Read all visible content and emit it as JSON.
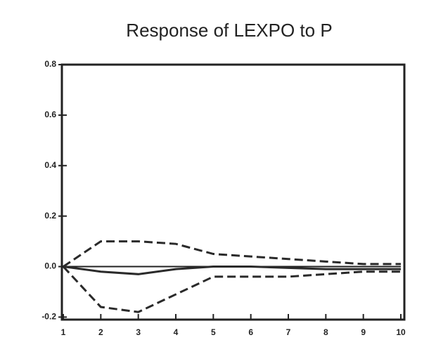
{
  "chart_data": {
    "type": "line",
    "title": "Response of LEXPO to P",
    "x": [
      1,
      2,
      3,
      4,
      5,
      6,
      7,
      8,
      9,
      10
    ],
    "xlim": [
      1,
      10
    ],
    "xticks": [
      1,
      2,
      3,
      4,
      5,
      6,
      7,
      8,
      9,
      10
    ],
    "ylim": [
      -0.21,
      0.8
    ],
    "yticks": [
      {
        "value": -0.2,
        "label": "-0.2"
      },
      {
        "value": 0,
        "label": "0.0"
      },
      {
        "value": 0.2,
        "label": "0.2"
      },
      {
        "value": 0.4,
        "label": "0.4"
      },
      {
        "value": 0.6,
        "label": "0.6"
      },
      {
        "value": 0.8,
        "label": "0.8"
      }
    ],
    "grid": false,
    "series": [
      {
        "color": "#2a2a2a",
        "dashed": false,
        "values": [
          0,
          -0.02,
          -0.03,
          -0.01,
          0.0,
          0.0,
          -0.005,
          -0.01,
          -0.01,
          -0.01
        ]
      },
      {
        "color": "#2a2a2a",
        "dashed": true,
        "values": [
          0,
          0.1,
          0.1,
          0.09,
          0.05,
          0.04,
          0.03,
          0.02,
          0.01,
          0.01
        ]
      },
      {
        "color": "#2a2a2a",
        "dashed": true,
        "values": [
          0,
          -0.16,
          -0.18,
          -0.11,
          -0.04,
          -0.04,
          -0.04,
          -0.03,
          -0.02,
          -0.02
        ]
      }
    ]
  }
}
